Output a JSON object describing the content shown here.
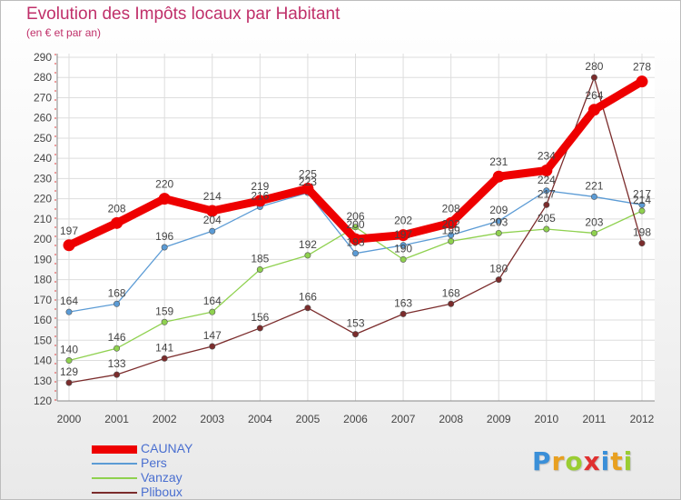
{
  "header": {
    "title": "Evolution des Impôts locaux par Habitant",
    "subtitle": "(en € et par an)"
  },
  "logo": {
    "letters": [
      "P",
      "r",
      "o",
      "x",
      "i",
      "t",
      "i"
    ],
    "colors": [
      "#3a8fd8",
      "#e8a020",
      "#9acd32",
      "#e03030",
      "#3a8fd8",
      "#e8a020",
      "#9acd32"
    ]
  },
  "colors": {
    "axis_label": "#444444",
    "grid": "#dddddd",
    "axis_tick": "#e04040",
    "value_label": "#444444"
  },
  "chart_data": {
    "type": "line",
    "title": "Evolution des Impôts locaux par Habitant",
    "subtitle": "(en € et par an)",
    "xlabel": "",
    "ylabel": "",
    "x": [
      "2000",
      "2001",
      "2002",
      "2003",
      "2004",
      "2005",
      "2006",
      "2007",
      "2008",
      "2009",
      "2010",
      "2011",
      "2012"
    ],
    "ylim": [
      120,
      290
    ],
    "yticks": [
      120,
      130,
      140,
      150,
      160,
      170,
      180,
      190,
      200,
      210,
      220,
      230,
      240,
      250,
      260,
      270,
      280,
      290
    ],
    "grid": true,
    "legend": "bottom-left",
    "series": [
      {
        "name": "CAUNAY",
        "color": "#ee0000",
        "values": [
          197,
          208,
          220,
          214,
          219,
          225,
          200,
          202,
          208,
          231,
          234,
          264,
          278
        ],
        "labels": [
          "197",
          "208",
          "220",
          "214",
          "219",
          "225",
          "200",
          "202",
          "208",
          "231",
          "234",
          "264",
          "278"
        ]
      },
      {
        "name": "Pers",
        "color": "#5b9bd5",
        "values": [
          164,
          168,
          196,
          204,
          216,
          223,
          193,
          197,
          202,
          209,
          224,
          221,
          217
        ],
        "labels": [
          "164",
          "168",
          "196",
          "204",
          "216",
          "223",
          "193",
          "197",
          "202",
          "209",
          "224",
          "221",
          "217"
        ]
      },
      {
        "name": "Vanzay",
        "color": "#8fd14f",
        "values": [
          140,
          146,
          159,
          164,
          185,
          192,
          206,
          190,
          199,
          203,
          205,
          203,
          214
        ],
        "labels": [
          "140",
          "146",
          "159",
          "164",
          "185",
          "192",
          "206",
          "190",
          "199",
          "203",
          "205",
          "203",
          "214"
        ]
      },
      {
        "name": "Pliboux",
        "color": "#7b2c2c",
        "values": [
          129,
          133,
          141,
          147,
          156,
          166,
          153,
          163,
          168,
          180,
          217,
          280,
          198
        ],
        "labels": [
          "129",
          "133",
          "141",
          "147",
          "156",
          "166",
          "153",
          "163",
          "168",
          "180",
          "217",
          "280",
          "198"
        ]
      }
    ]
  }
}
